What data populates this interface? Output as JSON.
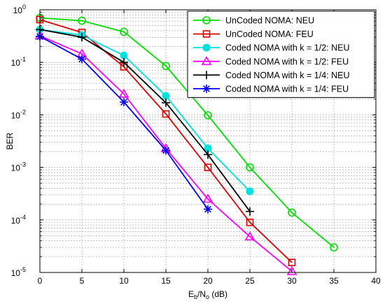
{
  "chart_data": {
    "type": "line",
    "xlabel_main": "E",
    "xlabel_sub1": "b",
    "xlabel_mid": "/N",
    "xlabel_sub2": "o",
    "xlabel_unit": " (dB)",
    "ylabel": "BER",
    "x_ticks": [
      "0",
      "5",
      "10",
      "15",
      "20",
      "25",
      "30",
      "35",
      "40"
    ],
    "y_ticks": [
      {
        "base": "10",
        "exp": "-5"
      },
      {
        "base": "10",
        "exp": "-4"
      },
      {
        "base": "10",
        "exp": "-3"
      },
      {
        "base": "10",
        "exp": "-2"
      },
      {
        "base": "10",
        "exp": "-1"
      },
      {
        "base": "10",
        "exp": "0"
      }
    ],
    "xlim": [
      0,
      40
    ],
    "ylim": [
      1e-05,
      1
    ],
    "yscale": "log",
    "grid": true,
    "legend_position": "top-right",
    "series": [
      {
        "name": "UnCoded NOMA: NEU",
        "color": "#00e000",
        "marker": "circle-open",
        "x": [
          0,
          5,
          10,
          15,
          20,
          25,
          30,
          35
        ],
        "y": [
          0.7,
          0.62,
          0.38,
          0.085,
          0.0098,
          0.001,
          0.000138,
          3e-05
        ]
      },
      {
        "name": "UnCoded NOMA: FEU",
        "color": "#e00000",
        "marker": "square-open",
        "x": [
          0,
          5,
          10,
          15,
          20,
          25,
          30
        ],
        "y": [
          0.65,
          0.37,
          0.082,
          0.0104,
          0.001,
          9e-05,
          1.55e-05
        ]
      },
      {
        "name": "Coded NOMA with k = 1/2: NEU",
        "color": "#00e0e0",
        "marker": "circle-filled",
        "x": [
          0,
          5,
          10,
          15,
          20,
          25
        ],
        "y": [
          0.42,
          0.33,
          0.135,
          0.023,
          0.0023,
          0.00035
        ]
      },
      {
        "name": "Coded NOMA with k = 1/2: FEU",
        "color": "#ff00ff",
        "marker": "triangle-open",
        "x": [
          0,
          5,
          10,
          15,
          20,
          25,
          30
        ],
        "y": [
          0.32,
          0.145,
          0.025,
          0.0023,
          0.00025,
          4.8e-05,
          1.05e-05
        ]
      },
      {
        "name": "Coded NOMA with k = 1/4: NEU",
        "color": "#000000",
        "marker": "plus",
        "x": [
          0,
          5,
          10,
          15,
          20,
          25
        ],
        "y": [
          0.42,
          0.3,
          0.1,
          0.017,
          0.00175,
          0.000145
        ]
      },
      {
        "name": "Coded NOMA with k = 1/4: FEU",
        "color": "#0000ff",
        "marker": "asterisk",
        "x": [
          0,
          5,
          10,
          15,
          20
        ],
        "y": [
          0.31,
          0.115,
          0.0175,
          0.0021,
          0.00016
        ]
      }
    ]
  }
}
